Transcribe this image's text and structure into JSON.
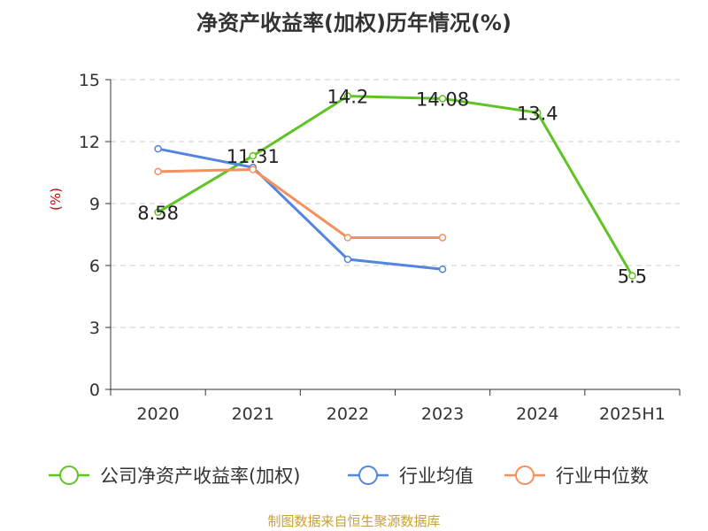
{
  "chart_data": {
    "type": "line",
    "title": "净资产收益率(加权)历年情况(%)",
    "ylabel": "(%)",
    "categories": [
      "2020",
      "2021",
      "2022",
      "2023",
      "2024",
      "2025H1"
    ],
    "ylim": [
      0,
      15
    ],
    "yticks": [
      0,
      3,
      6,
      9,
      12,
      15
    ],
    "grid": true,
    "legend_position": "bottom",
    "series": [
      {
        "name": "公司净资产收益率(加权)",
        "color": "#5ec423",
        "values": [
          8.58,
          11.31,
          14.2,
          14.08,
          13.4,
          5.5
        ],
        "labels": [
          "8.58",
          "11.31",
          "14.2",
          "14.08",
          "13.4",
          "5.5"
        ]
      },
      {
        "name": "行业均值",
        "color": "#5284e0",
        "values": [
          11.65,
          10.75,
          6.3,
          5.82,
          null,
          null
        ]
      },
      {
        "name": "行业中位数",
        "color": "#f68f5e",
        "values": [
          10.55,
          10.65,
          7.35,
          7.35,
          null,
          null
        ]
      }
    ]
  },
  "source": "制图数据来自恒生聚源数据库"
}
